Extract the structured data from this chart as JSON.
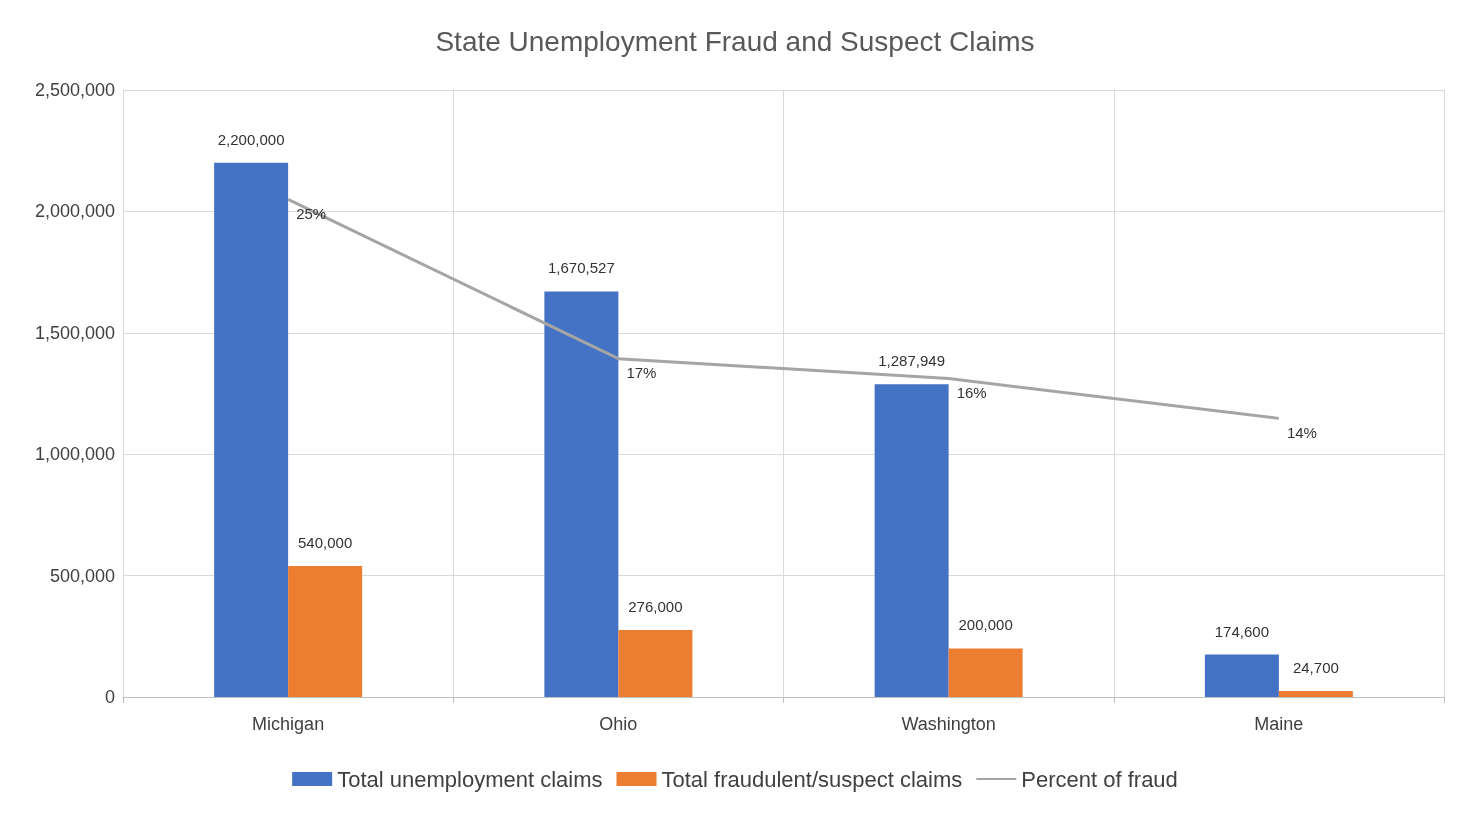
{
  "chart_data": {
    "type": "bar",
    "title": "State Unemployment Fraud and Suspect Claims",
    "categories": [
      "Michigan",
      "Ohio",
      "Washington",
      "Maine"
    ],
    "series": [
      {
        "name": "Total unemployment claims",
        "color": "#4472c4",
        "values": [
          2200000,
          1670527,
          1287949,
          174600
        ],
        "value_labels": [
          "2,200,000",
          "1,670,527",
          "1,287,949",
          "174,600"
        ]
      },
      {
        "name": "Total fraudulent/suspect claims",
        "color": "#ed7d31",
        "values": [
          540000,
          276000,
          200000,
          24700
        ],
        "value_labels": [
          "540,000",
          "276,000",
          "200,000",
          "24,700"
        ]
      },
      {
        "name": "Percent of fraud",
        "type": "line",
        "axis": "y2",
        "color": "#a5a5a5",
        "values": [
          25,
          17,
          16,
          14
        ],
        "value_labels": [
          "25%",
          "17%",
          "16%",
          "14%"
        ]
      }
    ],
    "ylim": [
      0,
      2500000
    ],
    "yticks": [
      0,
      {
        "value": 500000,
        "label": "500,000"
      },
      {
        "value": 1000000,
        "label": "1,000,000"
      },
      {
        "value": 1500000,
        "label": "1,500,000"
      },
      {
        "value": 2000000,
        "label": "2,000,000"
      },
      {
        "value": 2500000,
        "label": "2,500,000"
      }
    ],
    "y2lim": [
      0,
      30.5
    ],
    "grid": true,
    "legend": "bottom",
    "marker": "none"
  }
}
